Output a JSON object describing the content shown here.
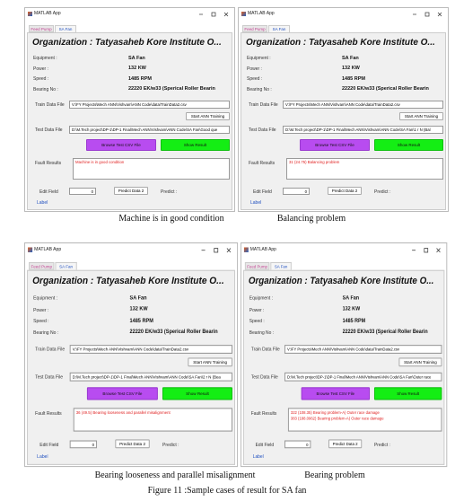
{
  "figure": {
    "panels": [
      {
        "window_title": "MATLAB App",
        "tabs": [
          "Feed Pump",
          "SA Fan"
        ],
        "organization": "Organization : Tatyasaheb Kore Institute O...",
        "fields": [
          {
            "label": "Equipment :",
            "value": "SA Fan"
          },
          {
            "label": "Power :",
            "value": "132 KW"
          },
          {
            "label": "Speed :",
            "value": "1485 RPM"
          },
          {
            "label": "Bearing No :",
            "value": "22220 EK/w33 (Sperical Roller Bearin"
          }
        ],
        "train_label": "Train Data File",
        "train_path": "V:\\FY Projects\\Mech ANN\\Vishvam\\ANN Code\\data\\TrainData2.csv",
        "train_button": "Start ANN Training",
        "test_label": "Test Data File",
        "test_path": "D:\\M.Tech project\\DP-1\\DP-1 Final\\Mech ANN\\Vishvam\\ANN Code\\SA Fan\\Good que",
        "browse_button": "Browse Test CSV File",
        "show_button": "Show Result",
        "fault_label": "Fault Results",
        "fault_results": [
          "Machine is in good condition"
        ],
        "edit_label": "Edit Field",
        "edit_value": 0,
        "predict_button": "Predict Data 2",
        "predict_label": "Predict :",
        "label": "Label",
        "caption": "Machine is in good condition"
      },
      {
        "window_title": "MATLAB App",
        "tabs": [
          "Feed Pump",
          "SA Fan"
        ],
        "organization": "Organization : Tatyasaheb Kore Institute O...",
        "fields": [
          {
            "label": "Equipment :",
            "value": "SA Fan"
          },
          {
            "label": "Power :",
            "value": "132 KW"
          },
          {
            "label": "Speed :",
            "value": "1485 RPM"
          },
          {
            "label": "Bearing No :",
            "value": "22220 EK/w33 (Sperical Roller Bearin"
          }
        ],
        "train_label": "Train Data File",
        "train_path": "V:\\FY Projects\\Mech ANN\\Vishvam\\ANN Code\\data\\TrainData2.csv",
        "train_button": "Start ANN Training",
        "test_label": "Test Data File",
        "test_path": "D:\\M.Tech project\\DP-1\\DP-1 Final\\Mech ANN\\Vishvam\\ANN Code\\SA Fan\\1 r N (Bal",
        "browse_button": "Browse Test CSV File",
        "show_button": "Show Result",
        "fault_label": "Fault Results",
        "fault_results": [
          "31 (24.75) Balancing problem"
        ],
        "edit_label": "Edit Field",
        "edit_value": 0,
        "predict_button": "Predict Data 2",
        "predict_label": "Predict :",
        "label": "Label",
        "caption": "Balancing problem"
      },
      {
        "window_title": "MATLAB App",
        "tabs": [
          "Feed Pump",
          "SA Fan"
        ],
        "organization": "Organization : Tatyasaheb Kore Institute O...",
        "fields": [
          {
            "label": "Equipment :",
            "value": "SA Fan"
          },
          {
            "label": "Power :",
            "value": "132 KW"
          },
          {
            "label": "Speed :",
            "value": "1485 RPM"
          },
          {
            "label": "Bearing No :",
            "value": "22220 EK/w33 (Sperical Roller Bearin"
          }
        ],
        "train_label": "Train Data File",
        "train_path": "V:\\FY Projects\\Mech ANN\\Vishvam\\ANN Code\\data\\TrainData2.csv",
        "train_button": "Start ANN Training",
        "test_label": "Test Data File",
        "test_path": "D:\\M.Tech project\\DP-1\\DP-1 Final\\Mech ANN\\Vishvam\\ANN Code\\SA Fan\\2 r N (Bea",
        "browse_button": "Browse Test CSV File",
        "show_button": "Show Result",
        "fault_label": "Fault Results",
        "fault_results": [
          "36 (49.5) Bearing looseness and parallel misalignment"
        ],
        "edit_label": "Edit Field",
        "edit_value": 0,
        "predict_button": "Predict Data 2",
        "predict_label": "Predict :",
        "label": "Label",
        "caption": "Bearing looseness and parallel misalignment"
      },
      {
        "window_title": "MATLAB App",
        "tabs": [
          "Feed Pump",
          "SA Fan"
        ],
        "organization": "Organization : Tatyasaheb Kore Institute O...",
        "fields": [
          {
            "label": "Equipment :",
            "value": "SA Fan"
          },
          {
            "label": "Power :",
            "value": "132 KW"
          },
          {
            "label": "Speed :",
            "value": "1485 RPM"
          },
          {
            "label": "Bearing No :",
            "value": "22220 EK/w33 (Sperical Roller Bearin"
          }
        ],
        "train_label": "Train Data File",
        "train_path": "V:\\FY Projects\\Mech ANN\\Vishvam\\ANN Code\\data\\TrainData2.csv",
        "train_button": "Start ANN Training",
        "test_label": "Test Data File",
        "test_path": "D:\\M.Tech project\\DP-1\\DP-1 Final\\Mech ANN\\Vishvam\\ANN Code\\SA Fan\\Outer race",
        "browse_button": "Browse Test CSV File",
        "show_button": "Show Result",
        "fault_label": "Fault Results",
        "fault_results": [
          "322 (108.35) Bearing problem-A) Outer race damage",
          "383 (188.0962) Bearing problem-A) Outer race damage"
        ],
        "edit_label": "Edit Field",
        "edit_value": 0,
        "predict_button": "Predict Data 2",
        "predict_label": "Predict :",
        "label": "Label",
        "caption": "Bearing problem"
      }
    ],
    "caption": "Figure 11 :Sample cases of result for SA fan"
  }
}
